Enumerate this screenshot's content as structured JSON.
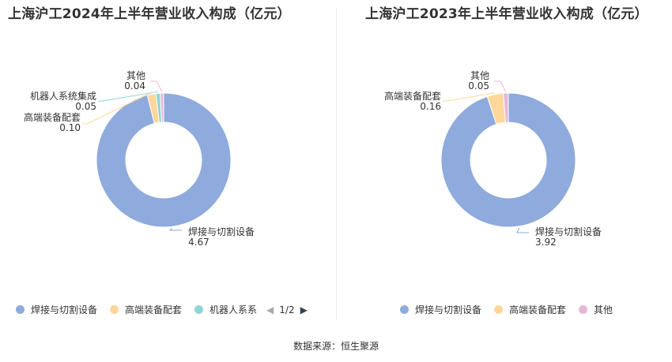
{
  "chart_data": [
    {
      "type": "pie",
      "title": "上海沪工2024年上半年营业收入构成（亿元）",
      "categories": [
        "焊接与切割设备",
        "高端装备配套",
        "机器人系统集成",
        "其他"
      ],
      "values": [
        4.67,
        0.1,
        0.05,
        0.04
      ],
      "value_labels": [
        "4.67",
        "0.10",
        "0.05",
        "0.04"
      ],
      "colors": [
        "#8faadc",
        "#ffd79a",
        "#8fd5d5",
        "#e6b8d8"
      ],
      "legend": {
        "placement": "bottom",
        "visible_items": [
          "焊接与切割设备",
          "高端装备配套",
          "机器人系系"
        ],
        "page": "1/2"
      }
    },
    {
      "type": "pie",
      "title": "上海沪工2023年上半年营业收入构成（亿元）",
      "categories": [
        "焊接与切割设备",
        "高端装备配套",
        "其他"
      ],
      "values": [
        3.92,
        0.16,
        0.05
      ],
      "value_labels": [
        "3.92",
        "0.16",
        "0.05"
      ],
      "colors": [
        "#8faadc",
        "#ffd79a",
        "#e6b8d8"
      ],
      "legend": {
        "placement": "bottom",
        "visible_items": [
          "焊接与切割设备",
          "高端装备配套",
          "其他"
        ]
      }
    }
  ],
  "source_text": "数据来源：恒生聚源"
}
